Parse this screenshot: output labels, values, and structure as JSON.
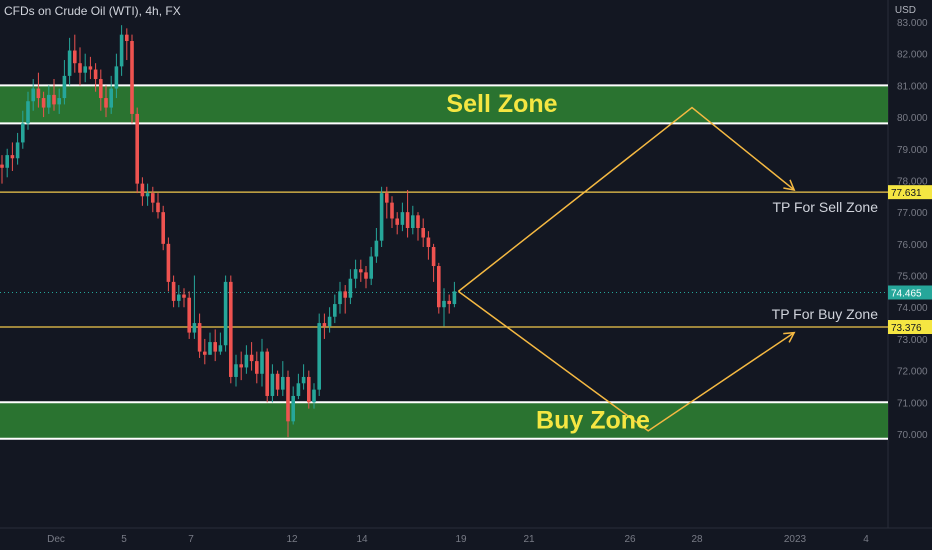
{
  "symbol_title": "CFDs on Crude Oil (WTI), 4h, FX",
  "currency": "USD",
  "colors": {
    "background": "#131722",
    "up": "#26a69a",
    "down": "#ef5350",
    "zone_fill": "#2e7d32",
    "zone_border": "#ffffff",
    "tp_line": "#f2c94c",
    "zone_text": "#f5e642",
    "arrow": "#f5b942",
    "axis_text": "#787b86",
    "text": "#d1d4dc"
  },
  "chart_data": {
    "type": "candlestick",
    "y_axis": {
      "ticks": [
        "83.000",
        "82.000",
        "81.000",
        "80.000",
        "79.000",
        "78.000",
        "77.000",
        "76.000",
        "75.000",
        "74.000",
        "73.000",
        "72.000",
        "71.000",
        "70.000"
      ]
    },
    "x_axis": {
      "ticks": [
        "Dec",
        "5",
        "7",
        "12",
        "14",
        "19",
        "21",
        "26",
        "28",
        "2023",
        "4"
      ]
    },
    "zones": [
      {
        "name": "Sell Zone",
        "low": 79.8,
        "high": 81.0
      },
      {
        "name": "Buy Zone",
        "low": 69.85,
        "high": 71.0
      }
    ],
    "levels": [
      {
        "label": "TP For Sell Zone",
        "value": 77.631,
        "price_tag": "77.631"
      },
      {
        "label": "TP For Buy Zone",
        "value": 73.376,
        "price_tag": "73.376"
      }
    ],
    "last_price": {
      "value": 74.465,
      "label": "74.465"
    },
    "projections": [
      {
        "name": "sell-projection",
        "points": [
          [
            0,
            74.5
          ],
          [
            32,
            80.3
          ],
          [
            46,
            77.7
          ]
        ]
      },
      {
        "name": "buy-projection",
        "points": [
          [
            0,
            74.5
          ],
          [
            26,
            70.1
          ],
          [
            46,
            73.2
          ]
        ]
      }
    ],
    "candles": [
      [
        78.5,
        78.4,
        78.8,
        77.9
      ],
      [
        78.4,
        78.8,
        79.0,
        78.1
      ],
      [
        78.8,
        78.7,
        79.2,
        78.3
      ],
      [
        78.7,
        79.2,
        79.5,
        78.5
      ],
      [
        79.2,
        79.8,
        80.2,
        79.0
      ],
      [
        79.8,
        80.5,
        80.8,
        79.6
      ],
      [
        80.5,
        80.9,
        81.2,
        80.2
      ],
      [
        80.9,
        80.6,
        81.4,
        80.3
      ],
      [
        80.6,
        80.3,
        80.8,
        80.0
      ],
      [
        80.3,
        80.7,
        81.0,
        80.1
      ],
      [
        80.7,
        80.4,
        81.2,
        80.2
      ],
      [
        80.4,
        80.6,
        80.9,
        80.1
      ],
      [
        80.6,
        81.3,
        81.8,
        80.4
      ],
      [
        81.3,
        82.1,
        82.5,
        81.0
      ],
      [
        82.1,
        81.7,
        82.6,
        81.4
      ],
      [
        81.7,
        81.4,
        82.2,
        81.0
      ],
      [
        81.4,
        81.6,
        82.0,
        81.1
      ],
      [
        81.6,
        81.5,
        81.9,
        81.2
      ],
      [
        81.5,
        81.2,
        81.7,
        80.8
      ],
      [
        81.2,
        80.6,
        81.5,
        80.2
      ],
      [
        80.6,
        80.3,
        81.0,
        80.0
      ],
      [
        80.3,
        80.9,
        81.3,
        80.1
      ],
      [
        80.9,
        81.6,
        82.0,
        80.6
      ],
      [
        81.6,
        82.6,
        82.9,
        81.3
      ],
      [
        82.6,
        82.4,
        82.8,
        81.8
      ],
      [
        82.4,
        80.1,
        82.6,
        79.8
      ],
      [
        80.1,
        77.9,
        80.3,
        77.6
      ],
      [
        77.9,
        77.5,
        78.1,
        77.2
      ],
      [
        77.5,
        77.6,
        77.9,
        77.2
      ],
      [
        77.6,
        77.3,
        77.8,
        77.0
      ],
      [
        77.3,
        77.0,
        77.6,
        76.8
      ],
      [
        77.0,
        76.0,
        77.2,
        75.8
      ],
      [
        76.0,
        74.8,
        76.2,
        74.5
      ],
      [
        74.8,
        74.2,
        75.0,
        74.0
      ],
      [
        74.2,
        74.4,
        74.7,
        74.0
      ],
      [
        74.4,
        74.3,
        74.6,
        74.0
      ],
      [
        74.3,
        73.2,
        74.5,
        73.0
      ],
      [
        73.2,
        73.5,
        75.0,
        73.0
      ],
      [
        73.5,
        72.6,
        73.8,
        72.4
      ],
      [
        72.6,
        72.5,
        73.0,
        72.2
      ],
      [
        72.5,
        72.9,
        73.2,
        72.5
      ],
      [
        72.9,
        72.6,
        73.3,
        72.3
      ],
      [
        72.6,
        72.8,
        73.2,
        72.5
      ],
      [
        72.8,
        74.8,
        75.0,
        72.6
      ],
      [
        74.8,
        71.8,
        75.0,
        71.6
      ],
      [
        71.8,
        72.2,
        72.5,
        71.5
      ],
      [
        72.2,
        72.1,
        72.6,
        71.7
      ],
      [
        72.1,
        72.5,
        72.8,
        71.9
      ],
      [
        72.5,
        72.3,
        72.9,
        72.0
      ],
      [
        72.3,
        71.9,
        72.6,
        71.6
      ],
      [
        71.9,
        72.6,
        73.0,
        71.5
      ],
      [
        72.6,
        71.2,
        72.7,
        71.0
      ],
      [
        71.2,
        71.9,
        72.2,
        71.0
      ],
      [
        71.9,
        71.4,
        72.0,
        71.2
      ],
      [
        71.4,
        71.8,
        72.3,
        71.2
      ],
      [
        71.8,
        70.4,
        72.0,
        69.9
      ],
      [
        70.4,
        71.2,
        71.5,
        70.3
      ],
      [
        71.2,
        71.6,
        71.9,
        71.1
      ],
      [
        71.6,
        71.8,
        72.2,
        71.4
      ],
      [
        71.8,
        71.0,
        72.0,
        70.8
      ],
      [
        71.0,
        71.4,
        71.6,
        70.8
      ],
      [
        71.4,
        73.5,
        73.8,
        71.2
      ],
      [
        73.5,
        73.4,
        73.8,
        73.0
      ],
      [
        73.4,
        73.7,
        74.0,
        73.2
      ],
      [
        73.7,
        74.1,
        74.4,
        73.5
      ],
      [
        74.1,
        74.5,
        74.8,
        73.8
      ],
      [
        74.5,
        74.3,
        74.7,
        73.8
      ],
      [
        74.3,
        74.9,
        75.2,
        74.1
      ],
      [
        74.9,
        75.2,
        75.5,
        74.6
      ],
      [
        75.2,
        75.1,
        75.5,
        74.8
      ],
      [
        75.1,
        74.9,
        75.3,
        74.6
      ],
      [
        74.9,
        75.6,
        75.9,
        74.7
      ],
      [
        75.6,
        76.1,
        76.5,
        75.4
      ],
      [
        76.1,
        77.6,
        77.8,
        75.9
      ],
      [
        77.6,
        77.3,
        77.8,
        76.8
      ],
      [
        77.3,
        76.8,
        77.5,
        76.5
      ],
      [
        76.8,
        76.6,
        77.0,
        76.3
      ],
      [
        76.6,
        77.0,
        77.3,
        76.4
      ],
      [
        77.0,
        76.5,
        77.7,
        76.2
      ],
      [
        76.5,
        76.9,
        77.2,
        76.3
      ],
      [
        76.9,
        76.5,
        77.0,
        76.1
      ],
      [
        76.5,
        76.2,
        76.8,
        75.9
      ],
      [
        76.2,
        75.9,
        76.4,
        75.5
      ],
      [
        75.9,
        75.3,
        76.0,
        74.8
      ],
      [
        75.3,
        74.0,
        75.4,
        73.8
      ],
      [
        74.0,
        74.2,
        74.6,
        73.4
      ],
      [
        74.2,
        74.1,
        74.4,
        73.8
      ],
      [
        74.1,
        74.5,
        74.8,
        74.0
      ]
    ]
  }
}
